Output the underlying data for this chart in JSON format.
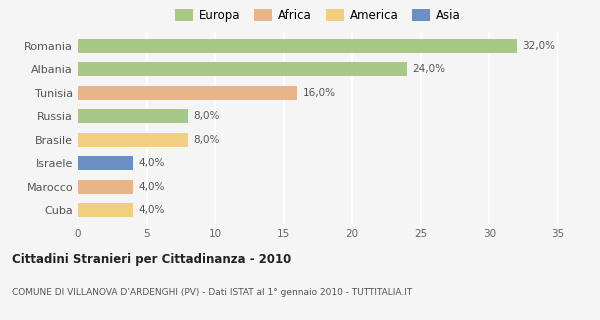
{
  "countries": [
    "Romania",
    "Albania",
    "Tunisia",
    "Russia",
    "Brasile",
    "Israele",
    "Marocco",
    "Cuba"
  ],
  "values": [
    32.0,
    24.0,
    16.0,
    8.0,
    8.0,
    4.0,
    4.0,
    4.0
  ],
  "labels": [
    "32,0%",
    "24,0%",
    "16,0%",
    "8,0%",
    "8,0%",
    "4,0%",
    "4,0%",
    "4,0%"
  ],
  "colors": [
    "#a8c887",
    "#a8c887",
    "#e8b48a",
    "#a8c887",
    "#f0d080",
    "#6b8fc2",
    "#e8b48a",
    "#f0d080"
  ],
  "legend_entries": [
    {
      "label": "Europa",
      "color": "#a8c887"
    },
    {
      "label": "Africa",
      "color": "#e8b48a"
    },
    {
      "label": "America",
      "color": "#f0d080"
    },
    {
      "label": "Asia",
      "color": "#6b8fc2"
    }
  ],
  "xlim": [
    0,
    35
  ],
  "xticks": [
    0,
    5,
    10,
    15,
    20,
    25,
    30,
    35
  ],
  "title": "Cittadini Stranieri per Cittadinanza - 2010",
  "subtitle": "COMUNE DI VILLANOVA D’ARDENGHI (PV) - Dati ISTAT al 1° gennaio 2010 - TUTTITALIA.IT",
  "background_color": "#f5f5f5",
  "grid_color": "#ffffff",
  "bar_height": 0.6
}
